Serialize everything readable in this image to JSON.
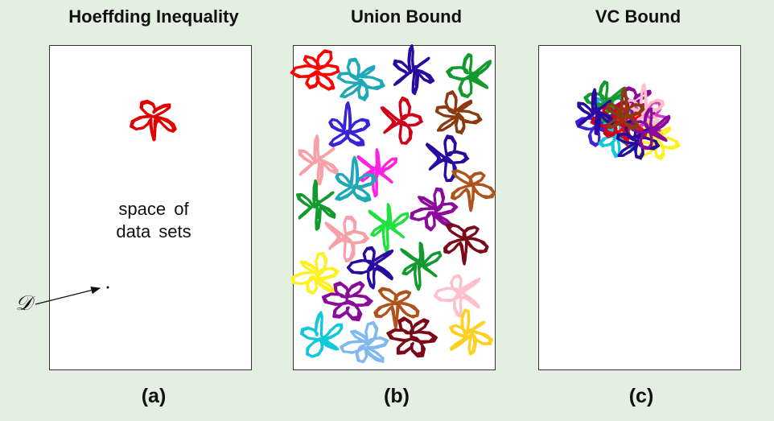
{
  "panels": [
    {
      "title": "Hoeffding Inequality",
      "letter": "(a)"
    },
    {
      "title": "Union Bound",
      "letter": "(b)"
    },
    {
      "title": "VC Bound",
      "letter": "(c)"
    }
  ],
  "panel_a": {
    "region_label_line1": "space of",
    "region_label_line2": "data sets",
    "point_label": "𝒟",
    "blob_color": "#e00000"
  },
  "colors": {
    "red": "#ff0000",
    "teal": "#1fa8b5",
    "indigo": "#2a0a9e",
    "green": "#139a2e",
    "darkred": "#d00018",
    "brown": "#8b3a0f",
    "blue": "#3a22d6",
    "pink": "#f8a0a8",
    "magenta": "#ff22e0",
    "cyan": "#10c8d8",
    "sienna": "#b0521c",
    "lime": "#22e040",
    "purple": "#8a0a9a",
    "maroon": "#7a0a18",
    "lightpink": "#ffc0cc",
    "yellow": "#fff020",
    "gold": "#ffd020",
    "skyblue": "#80b8f0",
    "orchid": "#d040c0"
  }
}
